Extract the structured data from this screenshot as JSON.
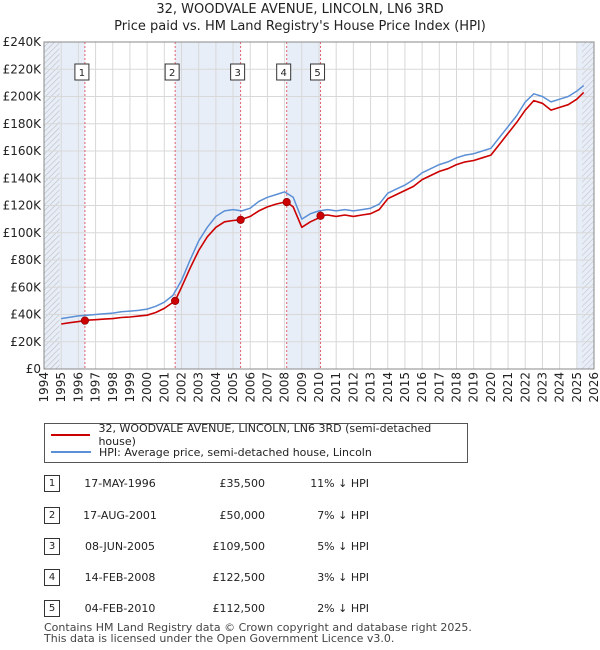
{
  "title_line1": "32, WOODVALE AVENUE, LINCOLN, LN6 3RD",
  "title_line2": "Price paid vs. HM Land Registry's House Price Index (HPI)",
  "legend": {
    "series1": "32, WOODVALE AVENUE, LINCOLN, LN6 3RD (semi-detached house)",
    "series2": "HPI: Average price, semi-detached house, Lincoln"
  },
  "colors": {
    "price_paid": "#cc0000",
    "hpi": "#5b8fd6",
    "shade": "#e8eef8",
    "sale_line": "#e06070"
  },
  "sales": [
    {
      "num": "1",
      "date": "17-MAY-1996",
      "price": "£35,500",
      "hpi": "11% ↓ HPI"
    },
    {
      "num": "2",
      "date": "17-AUG-2001",
      "price": "£50,000",
      "hpi": "7% ↓ HPI"
    },
    {
      "num": "3",
      "date": "08-JUN-2005",
      "price": "£109,500",
      "hpi": "5% ↓ HPI"
    },
    {
      "num": "4",
      "date": "14-FEB-2008",
      "price": "£122,500",
      "hpi": "3% ↓ HPI"
    },
    {
      "num": "5",
      "date": "04-FEB-2010",
      "price": "£112,500",
      "hpi": "2% ↓ HPI"
    }
  ],
  "footer_line1": "Contains HM Land Registry data © Crown copyright and database right 2025.",
  "footer_line2": "This data is licensed under the Open Government Licence v3.0.",
  "chart_data": {
    "type": "line",
    "xlim": [
      1994,
      2026
    ],
    "ylim": [
      0,
      240000
    ],
    "x_ticks": [
      1994,
      1995,
      1996,
      1997,
      1998,
      1999,
      2000,
      2001,
      2002,
      2003,
      2004,
      2005,
      2006,
      2007,
      2008,
      2009,
      2010,
      2011,
      2012,
      2013,
      2014,
      2015,
      2016,
      2017,
      2018,
      2019,
      2020,
      2021,
      2022,
      2023,
      2024,
      2025,
      2026
    ],
    "y_ticks": [
      0,
      20000,
      40000,
      60000,
      80000,
      100000,
      120000,
      140000,
      160000,
      180000,
      200000,
      220000,
      240000
    ],
    "y_tick_labels": [
      "£0",
      "£20K",
      "£40K",
      "£60K",
      "£80K",
      "£100K",
      "£120K",
      "£140K",
      "£160K",
      "£180K",
      "£200K",
      "£220K",
      "£240K"
    ],
    "sale_markers": [
      {
        "label": "1",
        "x": 1996.38,
        "y": 35500
      },
      {
        "label": "2",
        "x": 2001.63,
        "y": 50000
      },
      {
        "label": "3",
        "x": 2005.44,
        "y": 109500
      },
      {
        "label": "4",
        "x": 2008.12,
        "y": 122500
      },
      {
        "label": "5",
        "x": 2010.09,
        "y": 112500
      }
    ],
    "shaded_ranges": [
      [
        1994,
        1996.38
      ],
      [
        2001.63,
        2005.44
      ],
      [
        2008.12,
        2010.09
      ],
      [
        2025.0,
        2026
      ]
    ],
    "hatched_range": [
      1994,
      1994.9
    ],
    "series": [
      {
        "name": "HPI: Average price, semi-detached house, Lincoln",
        "x": [
          1995.0,
          1995.5,
          1996.0,
          1996.5,
          1997.0,
          1997.5,
          1998.0,
          1998.5,
          1999.0,
          1999.5,
          2000.0,
          2000.5,
          2001.0,
          2001.5,
          2002.0,
          2002.5,
          2003.0,
          2003.5,
          2004.0,
          2004.5,
          2005.0,
          2005.5,
          2006.0,
          2006.5,
          2007.0,
          2007.5,
          2008.0,
          2008.5,
          2009.0,
          2009.5,
          2010.0,
          2010.5,
          2011.0,
          2011.5,
          2012.0,
          2012.5,
          2013.0,
          2013.5,
          2014.0,
          2014.5,
          2015.0,
          2015.5,
          2016.0,
          2016.5,
          2017.0,
          2017.5,
          2018.0,
          2018.5,
          2019.0,
          2019.5,
          2020.0,
          2020.5,
          2021.0,
          2021.5,
          2022.0,
          2022.5,
          2023.0,
          2023.5,
          2024.0,
          2024.5,
          2025.0,
          2025.4
        ],
        "values": [
          37000,
          38000,
          39000,
          39500,
          40000,
          40500,
          41000,
          42000,
          42500,
          43000,
          44000,
          46000,
          49000,
          54000,
          65000,
          80000,
          94000,
          104000,
          112000,
          116000,
          117000,
          116000,
          118000,
          123000,
          126000,
          128000,
          130000,
          126000,
          110000,
          114000,
          116000,
          117000,
          116000,
          117000,
          116000,
          117000,
          118000,
          121000,
          129000,
          132000,
          135000,
          139000,
          144000,
          147000,
          150000,
          152000,
          155000,
          157000,
          158000,
          160000,
          162000,
          170000,
          178000,
          186000,
          196000,
          202000,
          200000,
          196000,
          198000,
          200000,
          204000,
          208000
        ]
      },
      {
        "name": "32, WOODVALE AVENUE, LINCOLN, LN6 3RD (semi-detached house)",
        "x": [
          1995.0,
          1995.5,
          1996.0,
          1996.38,
          1996.5,
          1997.0,
          1997.5,
          1998.0,
          1998.5,
          1999.0,
          1999.5,
          2000.0,
          2000.5,
          2001.0,
          2001.63,
          2002.0,
          2002.5,
          2003.0,
          2003.5,
          2004.0,
          2004.5,
          2005.0,
          2005.44,
          2005.5,
          2006.0,
          2006.5,
          2007.0,
          2007.5,
          2008.0,
          2008.12,
          2008.5,
          2009.0,
          2009.5,
          2010.0,
          2010.09,
          2010.5,
          2011.0,
          2011.5,
          2012.0,
          2012.5,
          2013.0,
          2013.5,
          2014.0,
          2014.5,
          2015.0,
          2015.5,
          2016.0,
          2016.5,
          2017.0,
          2017.5,
          2018.0,
          2018.5,
          2019.0,
          2019.5,
          2020.0,
          2020.5,
          2021.0,
          2021.5,
          2022.0,
          2022.5,
          2023.0,
          2023.5,
          2024.0,
          2024.5,
          2025.0,
          2025.4
        ],
        "values": [
          33000,
          34000,
          34800,
          35500,
          35800,
          36200,
          36600,
          37000,
          37800,
          38200,
          38800,
          39500,
          41500,
          44500,
          50000,
          60000,
          74000,
          87000,
          97000,
          104000,
          108000,
          109000,
          109500,
          109800,
          112000,
          116000,
          119000,
          121000,
          122500,
          122500,
          119000,
          104000,
          108000,
          111000,
          112500,
          113000,
          112000,
          113000,
          112000,
          113000,
          114000,
          117000,
          125000,
          128000,
          131000,
          134000,
          139000,
          142000,
          145000,
          147000,
          150000,
          152000,
          153000,
          155000,
          157000,
          165000,
          173000,
          181000,
          190000,
          197000,
          195000,
          190000,
          192000,
          194000,
          198000,
          203000
        ]
      }
    ]
  }
}
